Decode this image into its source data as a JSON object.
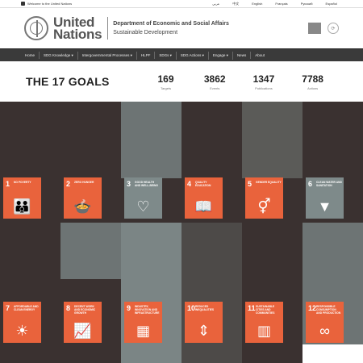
{
  "topbar": {
    "gateway": "Welcome to the United Nations",
    "languages": [
      "عربي",
      "中文",
      "English",
      "Français",
      "Русский",
      "Español"
    ]
  },
  "header": {
    "org_line1": "United",
    "org_line2": "Nations",
    "dept_line1": "Department of Economic and Social Affairs",
    "dept_line2": "Sustainable Development"
  },
  "nav": {
    "items": [
      "Home",
      "SDG Knowledge ▾",
      "Intergovernmental Processes ▾",
      "HLPF",
      "SDGs ▾",
      "SDG Actions ▾",
      "Engage ▾",
      "News",
      "About"
    ]
  },
  "stats": {
    "title": "THE 17 GOALS",
    "items": [
      {
        "value": "169",
        "label": "Targets"
      },
      {
        "value": "3862",
        "label": "Events"
      },
      {
        "value": "1347",
        "label": "Publications"
      },
      {
        "value": "7788",
        "label": "Actions"
      }
    ]
  },
  "goals": [
    {
      "number": "1",
      "title": "No Poverty",
      "icon": "family-icon",
      "glyph": "👪"
    },
    {
      "number": "2",
      "title": "Zero Hunger",
      "icon": "bowl-icon",
      "glyph": "🍲"
    },
    {
      "number": "3",
      "title": "Good Health and Well-being",
      "icon": "heartbeat-icon",
      "glyph": "♡"
    },
    {
      "number": "4",
      "title": "Quality Education",
      "icon": "book-icon",
      "glyph": "📖"
    },
    {
      "number": "5",
      "title": "Gender Equality",
      "icon": "gender-icon",
      "glyph": "⚥"
    },
    {
      "number": "6",
      "title": "Clean Water and Sanitation",
      "icon": "water-icon",
      "glyph": "▼"
    },
    {
      "number": "7",
      "title": "Affordable and Clean Energy",
      "icon": "sun-icon",
      "glyph": "☀"
    },
    {
      "number": "8",
      "title": "Decent Work and Economic Growth",
      "icon": "growth-chart-icon",
      "glyph": "📈"
    },
    {
      "number": "9",
      "title": "Industry, Innovation and Infrastructure",
      "icon": "cubes-icon",
      "glyph": "▦"
    },
    {
      "number": "10",
      "title": "Reduced Inequalities",
      "icon": "equality-icon",
      "glyph": "⇕"
    },
    {
      "number": "11",
      "title": "Sustainable Cities and Communities",
      "icon": "city-icon",
      "glyph": "▥"
    },
    {
      "number": "12",
      "title": "Responsible Consumption and Production",
      "icon": "infinity-icon",
      "glyph": "∞"
    }
  ]
}
